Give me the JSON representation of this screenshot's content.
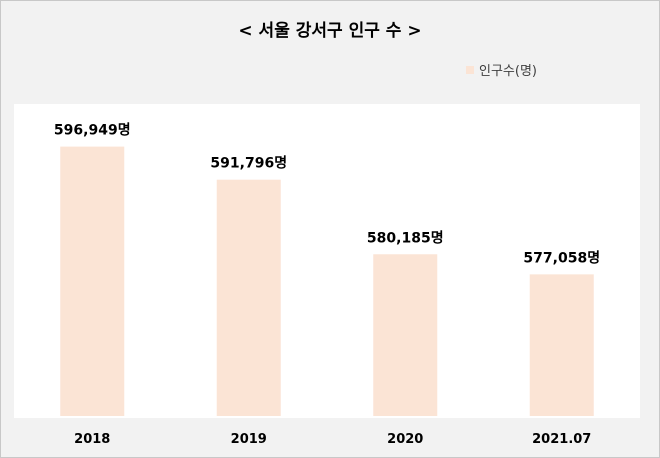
{
  "chart_data": {
    "type": "bar",
    "title": "< 서울 강서구 인구 수 >",
    "categories": [
      "2018",
      "2019",
      "2020",
      "2021.07"
    ],
    "series": [
      {
        "name": "인구수(명)",
        "values": [
          596949,
          591796,
          580185,
          577058
        ],
        "data_labels": [
          "596,949명",
          "591,796명",
          "580,185명",
          "577,058명"
        ]
      }
    ],
    "ylim": [
      555000,
      598600
    ],
    "colors": {
      "bar": "#fbe4d5",
      "plot_background": "#ffffff",
      "chart_background": "#f2f2f2"
    },
    "grid": false,
    "legend_position": "top-right"
  }
}
